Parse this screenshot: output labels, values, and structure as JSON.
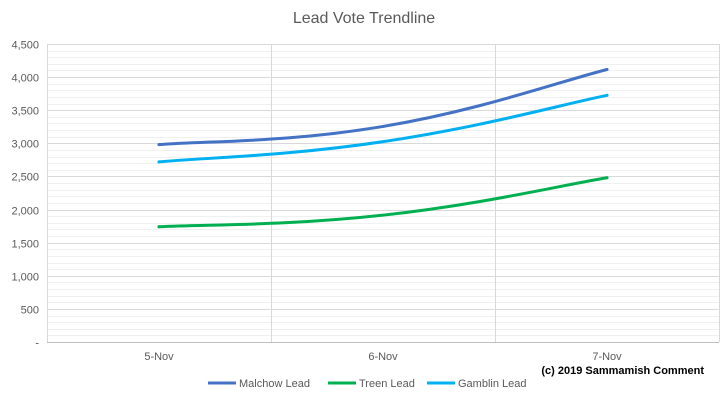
{
  "chart_data": {
    "type": "line",
    "title": "Lead Vote Trendline",
    "xlabel": "",
    "ylabel": "",
    "categories": [
      "5-Nov",
      "6-Nov",
      "7-Nov"
    ],
    "ylim": [
      0,
      4500
    ],
    "ytick_labels": [
      "-",
      "500",
      "1,000",
      "1,500",
      "2,000",
      "2,500",
      "3,000",
      "3,500",
      "4,000",
      "4,500"
    ],
    "grid": "on",
    "legend_position": "bottom",
    "series": [
      {
        "name": "Malchow Lead",
        "color": "#4472C4",
        "values": [
          2980,
          3255,
          4115
        ]
      },
      {
        "name": "Treen Lead",
        "color": "#00B050",
        "values": [
          1740,
          1915,
          2480
        ]
      },
      {
        "name": "Gamblin Lead",
        "color": "#00B0F0",
        "values": [
          2720,
          3025,
          3725
        ]
      }
    ]
  },
  "annotation": "(c) 2019 Sammamish Comment"
}
